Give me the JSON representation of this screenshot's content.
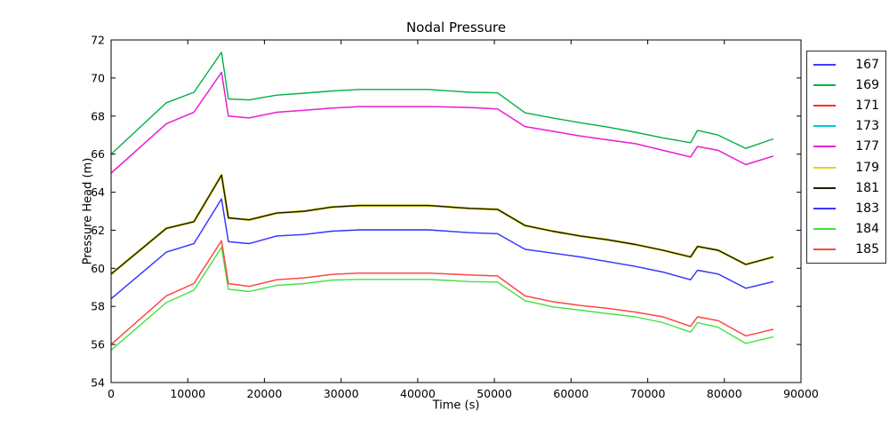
{
  "figure": {
    "title": "Nodal Pressure"
  },
  "chart_data": {
    "type": "line",
    "title": "Nodal Pressure",
    "xlabel": "Time (s)",
    "ylabel": "Pressure Head (m)",
    "xlim": [
      0,
      90000
    ],
    "ylim": [
      54,
      72
    ],
    "x_ticks": [
      0,
      10000,
      20000,
      30000,
      40000,
      50000,
      60000,
      70000,
      80000,
      90000
    ],
    "y_ticks": [
      54,
      56,
      58,
      60,
      62,
      64,
      66,
      68,
      70,
      72
    ],
    "grid": false,
    "legend_position": "outside-right",
    "note": "Series 167/183 (blue), 171/185 (red), 173/177 (cyan under magenta), 179/181 (yellow under black) overlap almost exactly; later-drawn series cover earlier ones.",
    "series": [
      {
        "name": "167",
        "color": "#3d3dff",
        "lw": 1.2,
        "points": [
          [
            0,
            58.4
          ],
          [
            7200,
            60.85
          ],
          [
            10800,
            61.3
          ],
          [
            14400,
            63.65
          ],
          [
            15300,
            61.4
          ],
          [
            18000,
            61.3
          ],
          [
            21600,
            61.7
          ],
          [
            25200,
            61.78
          ],
          [
            28800,
            61.95
          ],
          [
            32400,
            62.02
          ],
          [
            41400,
            62.02
          ],
          [
            46800,
            61.87
          ],
          [
            50400,
            61.82
          ],
          [
            54000,
            61.0
          ],
          [
            57600,
            60.8
          ],
          [
            61200,
            60.6
          ],
          [
            64800,
            60.35
          ],
          [
            68400,
            60.1
          ],
          [
            72000,
            59.8
          ],
          [
            75600,
            59.4
          ],
          [
            76500,
            59.9
          ],
          [
            79200,
            59.7
          ],
          [
            82800,
            58.95
          ],
          [
            86400,
            59.3
          ]
        ]
      },
      {
        "name": "169",
        "color": "#00b143",
        "lw": 1.4,
        "points": [
          [
            0,
            66.0
          ],
          [
            7200,
            68.7
          ],
          [
            10800,
            69.25
          ],
          [
            14400,
            71.35
          ],
          [
            15300,
            68.9
          ],
          [
            18000,
            68.85
          ],
          [
            21600,
            69.1
          ],
          [
            25200,
            69.2
          ],
          [
            28800,
            69.32
          ],
          [
            32400,
            69.4
          ],
          [
            41400,
            69.4
          ],
          [
            46800,
            69.25
          ],
          [
            50400,
            69.22
          ],
          [
            54000,
            68.17
          ],
          [
            57600,
            67.9
          ],
          [
            61200,
            67.65
          ],
          [
            64800,
            67.42
          ],
          [
            68400,
            67.15
          ],
          [
            72000,
            66.85
          ],
          [
            75600,
            66.6
          ],
          [
            76500,
            67.25
          ],
          [
            79200,
            67.0
          ],
          [
            82800,
            66.3
          ],
          [
            86400,
            66.8
          ]
        ]
      },
      {
        "name": "171",
        "color": "#ff2b2b",
        "lw": 1.2,
        "points": [
          [
            0,
            56.0
          ],
          [
            7200,
            58.55
          ],
          [
            10800,
            59.2
          ],
          [
            14400,
            61.45
          ],
          [
            15300,
            59.2
          ],
          [
            18000,
            59.05
          ],
          [
            21600,
            59.4
          ],
          [
            25200,
            59.5
          ],
          [
            28800,
            59.68
          ],
          [
            32400,
            59.75
          ],
          [
            41400,
            59.75
          ],
          [
            46800,
            59.65
          ],
          [
            50400,
            59.6
          ],
          [
            54000,
            58.55
          ],
          [
            57600,
            58.25
          ],
          [
            61200,
            58.05
          ],
          [
            64800,
            57.9
          ],
          [
            68400,
            57.7
          ],
          [
            72000,
            57.45
          ],
          [
            75600,
            56.95
          ],
          [
            76500,
            57.45
          ],
          [
            79200,
            57.25
          ],
          [
            82800,
            56.45
          ],
          [
            86400,
            56.8
          ]
        ]
      },
      {
        "name": "173",
        "color": "#00c9c9",
        "lw": 1.2,
        "points": [
          [
            0,
            65.0
          ],
          [
            7200,
            67.6
          ],
          [
            10800,
            68.2
          ],
          [
            14400,
            70.3
          ],
          [
            15300,
            68.0
          ],
          [
            18000,
            67.9
          ],
          [
            21600,
            68.2
          ],
          [
            25200,
            68.3
          ],
          [
            28800,
            68.42
          ],
          [
            32400,
            68.5
          ],
          [
            41400,
            68.5
          ],
          [
            46800,
            68.45
          ],
          [
            50400,
            68.37
          ],
          [
            54000,
            67.45
          ],
          [
            57600,
            67.2
          ],
          [
            61200,
            66.95
          ],
          [
            64800,
            66.75
          ],
          [
            68400,
            66.55
          ],
          [
            72000,
            66.2
          ],
          [
            75600,
            65.85
          ],
          [
            76500,
            66.4
          ],
          [
            79200,
            66.2
          ],
          [
            82800,
            65.45
          ],
          [
            86400,
            65.9
          ]
        ]
      },
      {
        "name": "177",
        "color": "#ef1fd4",
        "lw": 1.5,
        "points": [
          [
            0,
            65.0
          ],
          [
            7200,
            67.6
          ],
          [
            10800,
            68.2
          ],
          [
            14400,
            70.3
          ],
          [
            15300,
            68.0
          ],
          [
            18000,
            67.9
          ],
          [
            21600,
            68.2
          ],
          [
            25200,
            68.3
          ],
          [
            28800,
            68.42
          ],
          [
            32400,
            68.5
          ],
          [
            41400,
            68.5
          ],
          [
            46800,
            68.45
          ],
          [
            50400,
            68.37
          ],
          [
            54000,
            67.45
          ],
          [
            57600,
            67.2
          ],
          [
            61200,
            66.95
          ],
          [
            64800,
            66.75
          ],
          [
            68400,
            66.55
          ],
          [
            72000,
            66.2
          ],
          [
            75600,
            65.85
          ],
          [
            76500,
            66.4
          ],
          [
            79200,
            66.2
          ],
          [
            82800,
            65.45
          ],
          [
            86400,
            65.9
          ]
        ]
      },
      {
        "name": "179",
        "color": "#d6d620",
        "lw": 2.6,
        "points": [
          [
            0,
            59.7
          ],
          [
            7200,
            62.1
          ],
          [
            10800,
            62.45
          ],
          [
            14400,
            64.9
          ],
          [
            15300,
            62.65
          ],
          [
            18000,
            62.55
          ],
          [
            21600,
            62.9
          ],
          [
            25200,
            63.0
          ],
          [
            28800,
            63.22
          ],
          [
            32400,
            63.3
          ],
          [
            41400,
            63.3
          ],
          [
            46800,
            63.15
          ],
          [
            50400,
            63.1
          ],
          [
            54000,
            62.25
          ],
          [
            57600,
            61.95
          ],
          [
            61200,
            61.7
          ],
          [
            64800,
            61.5
          ],
          [
            68400,
            61.25
          ],
          [
            72000,
            60.95
          ],
          [
            75600,
            60.6
          ],
          [
            76500,
            61.15
          ],
          [
            79200,
            60.95
          ],
          [
            82800,
            60.2
          ],
          [
            86400,
            60.6
          ]
        ]
      },
      {
        "name": "181",
        "color": "#211b06",
        "lw": 1.4,
        "points": [
          [
            0,
            59.7
          ],
          [
            7200,
            62.1
          ],
          [
            10800,
            62.45
          ],
          [
            14400,
            64.9
          ],
          [
            15300,
            62.65
          ],
          [
            18000,
            62.55
          ],
          [
            21600,
            62.9
          ],
          [
            25200,
            63.0
          ],
          [
            28800,
            63.22
          ],
          [
            32400,
            63.3
          ],
          [
            41400,
            63.3
          ],
          [
            46800,
            63.15
          ],
          [
            50400,
            63.1
          ],
          [
            54000,
            62.25
          ],
          [
            57600,
            61.95
          ],
          [
            61200,
            61.7
          ],
          [
            64800,
            61.5
          ],
          [
            68400,
            61.25
          ],
          [
            72000,
            60.95
          ],
          [
            75600,
            60.6
          ],
          [
            76500,
            61.15
          ],
          [
            79200,
            60.95
          ],
          [
            82800,
            60.2
          ],
          [
            86400,
            60.6
          ]
        ]
      },
      {
        "name": "183",
        "color": "#3838ff",
        "lw": 1.4,
        "points": [
          [
            0,
            58.4
          ],
          [
            7200,
            60.85
          ],
          [
            10800,
            61.3
          ],
          [
            14400,
            63.65
          ],
          [
            15300,
            61.4
          ],
          [
            18000,
            61.3
          ],
          [
            21600,
            61.7
          ],
          [
            25200,
            61.78
          ],
          [
            28800,
            61.95
          ],
          [
            32400,
            62.02
          ],
          [
            41400,
            62.02
          ],
          [
            46800,
            61.87
          ],
          [
            50400,
            61.82
          ],
          [
            54000,
            61.0
          ],
          [
            57600,
            60.8
          ],
          [
            61200,
            60.6
          ],
          [
            64800,
            60.35
          ],
          [
            68400,
            60.1
          ],
          [
            72000,
            59.8
          ],
          [
            75600,
            59.4
          ],
          [
            76500,
            59.9
          ],
          [
            79200,
            59.7
          ],
          [
            82800,
            58.95
          ],
          [
            86400,
            59.3
          ]
        ]
      },
      {
        "name": "184",
        "color": "#3fe23f",
        "lw": 1.4,
        "points": [
          [
            0,
            55.7
          ],
          [
            7200,
            58.2
          ],
          [
            10800,
            58.85
          ],
          [
            14400,
            61.1
          ],
          [
            15300,
            58.9
          ],
          [
            18000,
            58.78
          ],
          [
            21600,
            59.1
          ],
          [
            25200,
            59.2
          ],
          [
            28800,
            59.38
          ],
          [
            32400,
            59.42
          ],
          [
            41400,
            59.42
          ],
          [
            46800,
            59.3
          ],
          [
            50400,
            59.28
          ],
          [
            54000,
            58.3
          ],
          [
            57600,
            57.98
          ],
          [
            61200,
            57.8
          ],
          [
            64800,
            57.62
          ],
          [
            68400,
            57.45
          ],
          [
            72000,
            57.15
          ],
          [
            75600,
            56.65
          ],
          [
            76500,
            57.15
          ],
          [
            79200,
            56.9
          ],
          [
            82800,
            56.05
          ],
          [
            86400,
            56.4
          ]
        ]
      },
      {
        "name": "185",
        "color": "#ff4545",
        "lw": 1.4,
        "points": [
          [
            0,
            56.0
          ],
          [
            7200,
            58.55
          ],
          [
            10800,
            59.2
          ],
          [
            14400,
            61.45
          ],
          [
            15300,
            59.2
          ],
          [
            18000,
            59.05
          ],
          [
            21600,
            59.4
          ],
          [
            25200,
            59.5
          ],
          [
            28800,
            59.68
          ],
          [
            32400,
            59.75
          ],
          [
            41400,
            59.75
          ],
          [
            46800,
            59.65
          ],
          [
            50400,
            59.6
          ],
          [
            54000,
            58.55
          ],
          [
            57600,
            58.25
          ],
          [
            61200,
            58.05
          ],
          [
            64800,
            57.9
          ],
          [
            68400,
            57.7
          ],
          [
            72000,
            57.45
          ],
          [
            75600,
            56.95
          ],
          [
            76500,
            57.45
          ],
          [
            79200,
            57.25
          ],
          [
            82800,
            56.45
          ],
          [
            86400,
            56.8
          ]
        ]
      }
    ]
  }
}
